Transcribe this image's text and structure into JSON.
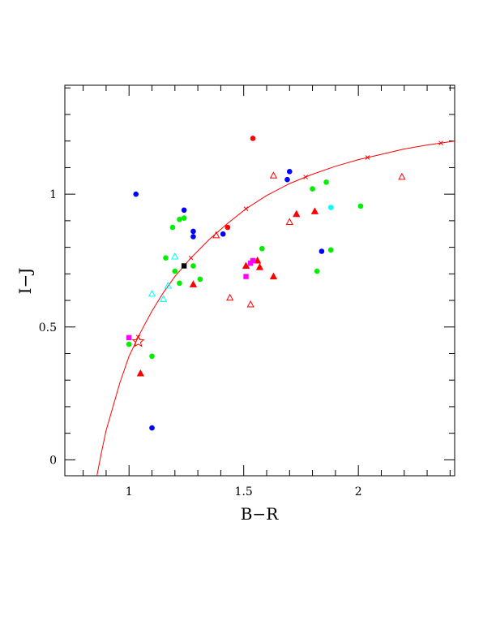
{
  "chart_data": {
    "type": "scatter",
    "title": "",
    "xlabel": "B−R",
    "ylabel": "I−J",
    "xlim": [
      0.72,
      2.42
    ],
    "ylim": [
      -0.06,
      1.41
    ],
    "x_ticks": [
      {
        "value": 1,
        "label": "1"
      },
      {
        "value": 1.5,
        "label": "1.5"
      },
      {
        "value": 2,
        "label": "2"
      }
    ],
    "y_ticks": [
      {
        "value": 0,
        "label": "0"
      },
      {
        "value": 0.5,
        "label": "0.5"
      },
      {
        "value": 1,
        "label": "1"
      }
    ],
    "grid": false,
    "colors": {
      "red": "#ff0000",
      "green": "#00ee00",
      "blue": "#0000ff",
      "cyan": "#00ffff",
      "magenta": "#ff00ff",
      "black": "#000000"
    },
    "points": [
      {
        "x": 1.54,
        "y": 1.21,
        "shape": "circle",
        "color": "red"
      },
      {
        "x": 1.43,
        "y": 0.875,
        "shape": "circle",
        "color": "red"
      },
      {
        "x": 1.03,
        "y": 1.0,
        "shape": "circle",
        "color": "blue"
      },
      {
        "x": 1.24,
        "y": 0.94,
        "shape": "circle",
        "color": "blue"
      },
      {
        "x": 1.28,
        "y": 0.86,
        "shape": "circle",
        "color": "blue"
      },
      {
        "x": 1.28,
        "y": 0.84,
        "shape": "circle",
        "color": "blue"
      },
      {
        "x": 1.41,
        "y": 0.85,
        "shape": "circle",
        "color": "blue"
      },
      {
        "x": 1.7,
        "y": 1.085,
        "shape": "circle",
        "color": "blue"
      },
      {
        "x": 1.69,
        "y": 1.055,
        "shape": "circle",
        "color": "blue"
      },
      {
        "x": 1.84,
        "y": 0.785,
        "shape": "circle",
        "color": "blue"
      },
      {
        "x": 1.1,
        "y": 0.12,
        "shape": "circle",
        "color": "blue"
      },
      {
        "x": 1.19,
        "y": 0.875,
        "shape": "circle",
        "color": "green"
      },
      {
        "x": 1.22,
        "y": 0.905,
        "shape": "circle",
        "color": "green"
      },
      {
        "x": 1.24,
        "y": 0.91,
        "shape": "circle",
        "color": "green"
      },
      {
        "x": 1.16,
        "y": 0.76,
        "shape": "circle",
        "color": "green"
      },
      {
        "x": 1.2,
        "y": 0.71,
        "shape": "circle",
        "color": "green"
      },
      {
        "x": 1.22,
        "y": 0.665,
        "shape": "circle",
        "color": "green"
      },
      {
        "x": 1.28,
        "y": 0.73,
        "shape": "circle",
        "color": "green"
      },
      {
        "x": 1.31,
        "y": 0.68,
        "shape": "circle",
        "color": "green"
      },
      {
        "x": 1.58,
        "y": 0.795,
        "shape": "circle",
        "color": "green"
      },
      {
        "x": 1.8,
        "y": 1.02,
        "shape": "circle",
        "color": "green"
      },
      {
        "x": 1.86,
        "y": 1.045,
        "shape": "circle",
        "color": "green"
      },
      {
        "x": 2.01,
        "y": 0.955,
        "shape": "circle",
        "color": "green"
      },
      {
        "x": 1.82,
        "y": 0.71,
        "shape": "circle",
        "color": "green"
      },
      {
        "x": 1.88,
        "y": 0.79,
        "shape": "circle",
        "color": "green"
      },
      {
        "x": 1.0,
        "y": 0.435,
        "shape": "circle",
        "color": "green"
      },
      {
        "x": 1.1,
        "y": 0.39,
        "shape": "circle",
        "color": "green"
      },
      {
        "x": 1.88,
        "y": 0.95,
        "shape": "circle",
        "color": "cyan"
      },
      {
        "x": 1.28,
        "y": 0.66,
        "shape": "triangle",
        "color": "red"
      },
      {
        "x": 1.51,
        "y": 0.73,
        "shape": "triangle",
        "color": "red"
      },
      {
        "x": 1.56,
        "y": 0.75,
        "shape": "triangle",
        "color": "red"
      },
      {
        "x": 1.57,
        "y": 0.725,
        "shape": "triangle",
        "color": "red"
      },
      {
        "x": 1.63,
        "y": 0.69,
        "shape": "triangle",
        "color": "red"
      },
      {
        "x": 1.73,
        "y": 0.925,
        "shape": "triangle",
        "color": "red"
      },
      {
        "x": 1.81,
        "y": 0.935,
        "shape": "triangle",
        "color": "red"
      },
      {
        "x": 1.05,
        "y": 0.325,
        "shape": "triangle",
        "color": "red"
      },
      {
        "x": 1.38,
        "y": 0.845,
        "shape": "triangle-open",
        "color": "red"
      },
      {
        "x": 1.44,
        "y": 0.61,
        "shape": "triangle-open",
        "color": "red"
      },
      {
        "x": 1.53,
        "y": 0.585,
        "shape": "triangle-open",
        "color": "red"
      },
      {
        "x": 1.63,
        "y": 1.07,
        "shape": "triangle-open",
        "color": "red"
      },
      {
        "x": 1.7,
        "y": 0.895,
        "shape": "triangle-open",
        "color": "red"
      },
      {
        "x": 2.19,
        "y": 1.065,
        "shape": "triangle-open",
        "color": "red"
      },
      {
        "x": 1.1,
        "y": 0.625,
        "shape": "triangle-open",
        "color": "cyan"
      },
      {
        "x": 1.15,
        "y": 0.605,
        "shape": "triangle-open",
        "color": "cyan"
      },
      {
        "x": 1.17,
        "y": 0.655,
        "shape": "triangle-open",
        "color": "cyan"
      },
      {
        "x": 1.2,
        "y": 0.765,
        "shape": "triangle-open",
        "color": "cyan"
      },
      {
        "x": 1.0,
        "y": 0.46,
        "shape": "square",
        "color": "magenta"
      },
      {
        "x": 1.51,
        "y": 0.69,
        "shape": "square",
        "color": "magenta"
      },
      {
        "x": 1.53,
        "y": 0.74,
        "shape": "square",
        "color": "magenta"
      },
      {
        "x": 1.54,
        "y": 0.75,
        "shape": "square",
        "color": "magenta"
      },
      {
        "x": 1.24,
        "y": 0.73,
        "shape": "square",
        "color": "black"
      },
      {
        "x": 1.04,
        "y": 0.445,
        "shape": "star-open",
        "color": "red"
      }
    ],
    "curve": {
      "color": "red",
      "points": [
        [
          0.86,
          -0.06
        ],
        [
          0.88,
          0.03
        ],
        [
          0.9,
          0.11
        ],
        [
          0.93,
          0.2
        ],
        [
          0.96,
          0.29
        ],
        [
          1.0,
          0.39
        ],
        [
          1.05,
          0.48
        ],
        [
          1.1,
          0.56
        ],
        [
          1.15,
          0.63
        ],
        [
          1.2,
          0.69
        ],
        [
          1.27,
          0.76
        ],
        [
          1.35,
          0.83
        ],
        [
          1.43,
          0.89
        ],
        [
          1.51,
          0.945
        ],
        [
          1.6,
          0.995
        ],
        [
          1.7,
          1.04
        ],
        [
          1.8,
          1.075
        ],
        [
          1.9,
          1.105
        ],
        [
          2.0,
          1.13
        ],
        [
          2.1,
          1.15
        ],
        [
          2.2,
          1.17
        ],
        [
          2.3,
          1.185
        ],
        [
          2.42,
          1.2
        ]
      ],
      "marker_x": [
        1.04,
        1.27,
        1.51,
        1.77,
        2.04,
        2.36
      ]
    }
  }
}
